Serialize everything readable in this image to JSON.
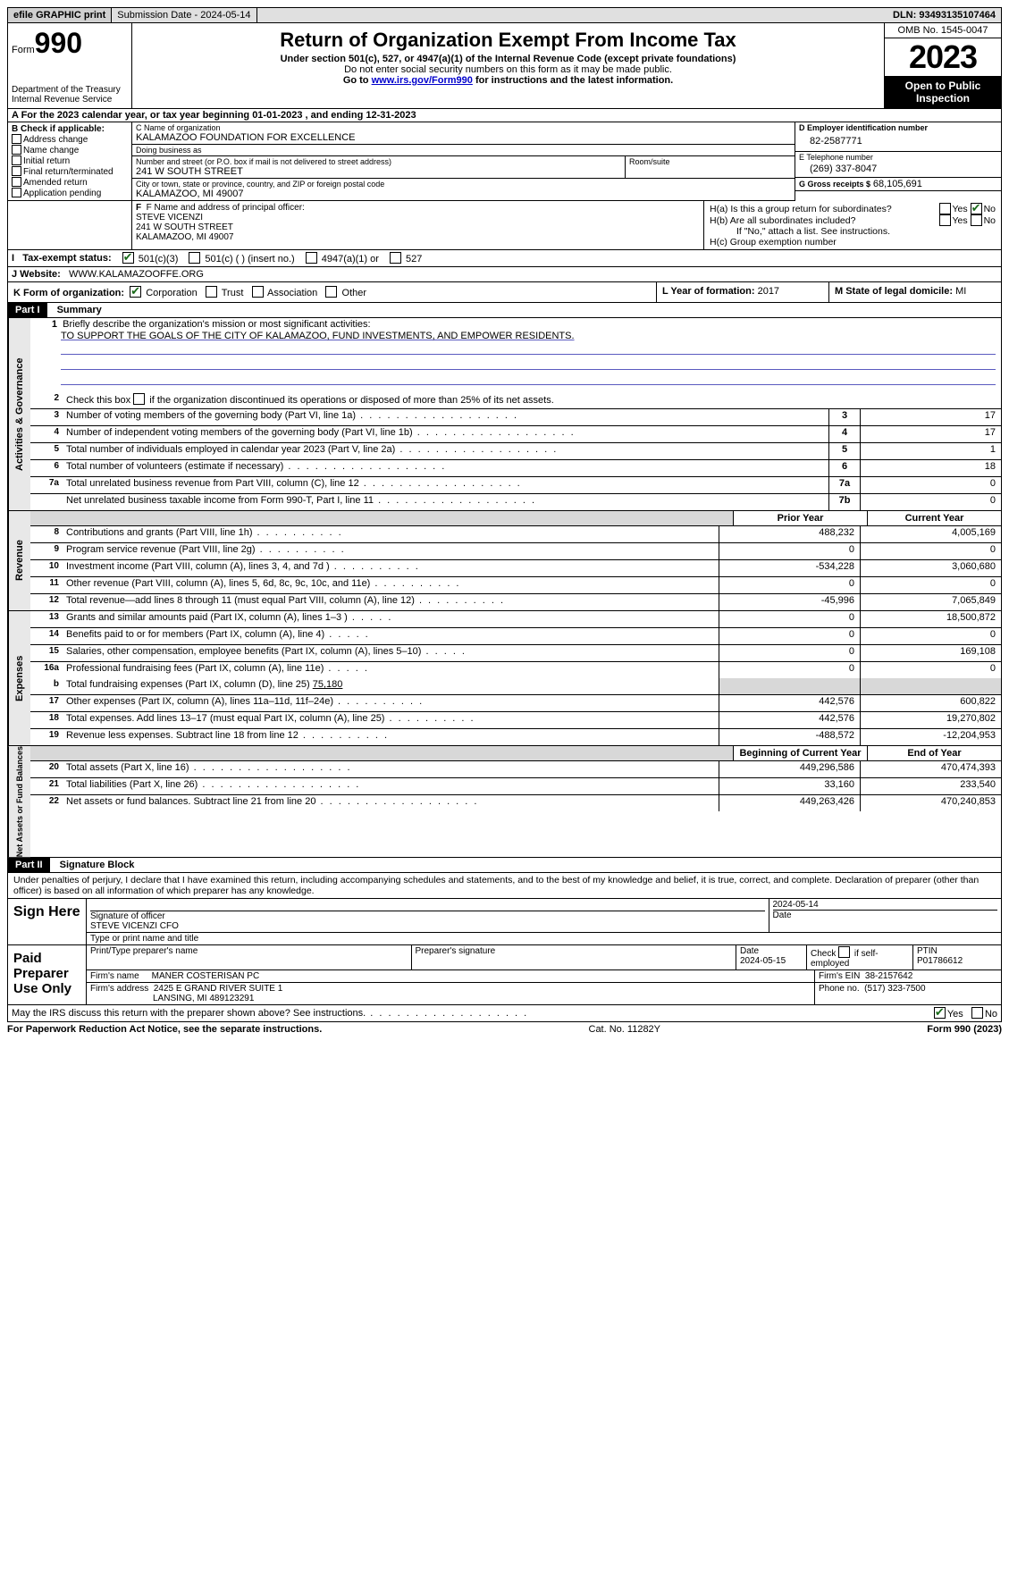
{
  "topbar": {
    "efile": "efile GRAPHIC print",
    "submission": "Submission Date - 2024-05-14",
    "dln": "DLN: 93493135107464"
  },
  "header": {
    "form_word": "Form",
    "form_num": "990",
    "dept": "Department of the Treasury\nInternal Revenue Service",
    "title": "Return of Organization Exempt From Income Tax",
    "subtitle": "Under section 501(c), 527, or 4947(a)(1) of the Internal Revenue Code (except private foundations)",
    "note1": "Do not enter social security numbers on this form as it may be made public.",
    "note2_pre": "Go to ",
    "note2_link": "www.irs.gov/Form990",
    "note2_post": " for instructions and the latest information.",
    "omb": "OMB No. 1545-0047",
    "year": "2023",
    "inspect": "Open to Public Inspection"
  },
  "rowA": "A For the 2023 calendar year, or tax year beginning 01-01-2023   , and ending 12-31-2023",
  "boxB": {
    "hdr": "B Check if applicable:",
    "opts": [
      "Address change",
      "Name change",
      "Initial return",
      "Final return/terminated",
      "Amended return",
      "Application pending"
    ]
  },
  "boxC": {
    "name_lab": "C Name of organization",
    "name": "KALAMAZOO FOUNDATION FOR EXCELLENCE",
    "dba_lab": "Doing business as",
    "dba": "",
    "street_lab": "Number and street (or P.O. box if mail is not delivered to street address)",
    "street": "241 W SOUTH STREET",
    "room_lab": "Room/suite",
    "city_lab": "City or town, state or province, country, and ZIP or foreign postal code",
    "city": "KALAMAZOO, MI  49007"
  },
  "boxD": {
    "lab": "D Employer identification number",
    "val": "82-2587771"
  },
  "boxE": {
    "lab": "E Telephone number",
    "val": "(269) 337-8047"
  },
  "boxG": {
    "lab": "G Gross receipts $",
    "val": "68,105,691"
  },
  "boxF": {
    "lab": "F  Name and address of principal officer:",
    "l1": "STEVE VICENZI",
    "l2": "241 W SOUTH STREET",
    "l3": "KALAMAZOO, MI  49007"
  },
  "boxH": {
    "a_lab": "H(a)  Is this a group return for subordinates?",
    "a_no": true,
    "b_lab": "H(b)  Are all subordinates included?",
    "b_note": "If \"No,\" attach a list. See instructions.",
    "c_lab": "H(c)  Group exemption number"
  },
  "boxI": {
    "lab": "I   Tax-exempt status:",
    "o1": "501(c)(3)",
    "o1_on": true,
    "o2": "501(c) (  ) (insert no.)",
    "o3": "4947(a)(1) or",
    "o4": "527"
  },
  "boxJ": {
    "lab": "J   Website:",
    "val": "WWW.KALAMAZOOFFE.ORG"
  },
  "boxK": {
    "lab": "K Form of organization:",
    "o1": "Corporation",
    "o1_on": true,
    "o2": "Trust",
    "o3": "Association",
    "o4": "Other"
  },
  "boxL": {
    "lab": "L Year of formation:",
    "val": "2017"
  },
  "boxM": {
    "lab": "M State of legal domicile:",
    "val": "MI"
  },
  "part1": {
    "tag": "Part I",
    "title": "Summary"
  },
  "mission": {
    "num": "1",
    "lab": "Briefly describe the organization's mission or most significant activities:",
    "text": "TO SUPPORT THE GOALS OF THE CITY OF KALAMAZOO, FUND INVESTMENTS, AND EMPOWER RESIDENTS."
  },
  "gov": {
    "label": "Activities & Governance",
    "l2": "Check this box          if the organization discontinued its operations or disposed of more than 25% of its net assets.",
    "rows": [
      {
        "n": "3",
        "d": "Number of voting members of the governing body (Part VI, line 1a)",
        "b": "3",
        "v": "17"
      },
      {
        "n": "4",
        "d": "Number of independent voting members of the governing body (Part VI, line 1b)",
        "b": "4",
        "v": "17"
      },
      {
        "n": "5",
        "d": "Total number of individuals employed in calendar year 2023 (Part V, line 2a)",
        "b": "5",
        "v": "1"
      },
      {
        "n": "6",
        "d": "Total number of volunteers (estimate if necessary)",
        "b": "6",
        "v": "18"
      },
      {
        "n": "7a",
        "d": "Total unrelated business revenue from Part VIII, column (C), line 12",
        "b": "7a",
        "v": "0"
      },
      {
        "n": "",
        "d": "Net unrelated business taxable income from Form 990-T, Part I, line 11",
        "b": "7b",
        "v": "0"
      }
    ]
  },
  "rev": {
    "label": "Revenue",
    "hdr_prior": "Prior Year",
    "hdr_curr": "Current Year",
    "rows": [
      {
        "n": "8",
        "d": "Contributions and grants (Part VIII, line 1h)",
        "p": "488,232",
        "c": "4,005,169"
      },
      {
        "n": "9",
        "d": "Program service revenue (Part VIII, line 2g)",
        "p": "0",
        "c": "0"
      },
      {
        "n": "10",
        "d": "Investment income (Part VIII, column (A), lines 3, 4, and 7d )",
        "p": "-534,228",
        "c": "3,060,680"
      },
      {
        "n": "11",
        "d": "Other revenue (Part VIII, column (A), lines 5, 6d, 8c, 9c, 10c, and 11e)",
        "p": "0",
        "c": "0"
      },
      {
        "n": "12",
        "d": "Total revenue—add lines 8 through 11 (must equal Part VIII, column (A), line 12)",
        "p": "-45,996",
        "c": "7,065,849"
      }
    ]
  },
  "exp": {
    "label": "Expenses",
    "rows": [
      {
        "n": "13",
        "d": "Grants and similar amounts paid (Part IX, column (A), lines 1–3 )",
        "p": "0",
        "c": "18,500,872"
      },
      {
        "n": "14",
        "d": "Benefits paid to or for members (Part IX, column (A), line 4)",
        "p": "0",
        "c": "0"
      },
      {
        "n": "15",
        "d": "Salaries, other compensation, employee benefits (Part IX, column (A), lines 5–10)",
        "p": "0",
        "c": "169,108"
      },
      {
        "n": "16a",
        "d": "Professional fundraising fees (Part IX, column (A), line 11e)",
        "p": "0",
        "c": "0"
      }
    ],
    "l16b_n": "b",
    "l16b": "Total fundraising expenses (Part IX, column (D), line 25)",
    "l16b_v": "75,180",
    "rows2": [
      {
        "n": "17",
        "d": "Other expenses (Part IX, column (A), lines 11a–11d, 11f–24e)",
        "p": "442,576",
        "c": "600,822"
      },
      {
        "n": "18",
        "d": "Total expenses. Add lines 13–17 (must equal Part IX, column (A), line 25)",
        "p": "442,576",
        "c": "19,270,802"
      },
      {
        "n": "19",
        "d": "Revenue less expenses. Subtract line 18 from line 12",
        "p": "-488,572",
        "c": "-12,204,953"
      }
    ]
  },
  "na": {
    "label": "Net Assets or Fund Balances",
    "hdr_beg": "Beginning of Current Year",
    "hdr_end": "End of Year",
    "rows": [
      {
        "n": "20",
        "d": "Total assets (Part X, line 16)",
        "p": "449,296,586",
        "c": "470,474,393"
      },
      {
        "n": "21",
        "d": "Total liabilities (Part X, line 26)",
        "p": "33,160",
        "c": "233,540"
      },
      {
        "n": "22",
        "d": "Net assets or fund balances. Subtract line 21 from line 20",
        "p": "449,263,426",
        "c": "470,240,853"
      }
    ]
  },
  "part2": {
    "tag": "Part II",
    "title": "Signature Block"
  },
  "sig": {
    "decl": "Under penalties of perjury, I declare that I have examined this return, including accompanying schedules and statements, and to the best of my knowledge and belief, it is true, correct, and complete. Declaration of preparer (other than officer) is based on all information of which preparer has any knowledge.",
    "sign_here": "Sign Here",
    "sig_officer_lab": "Signature of officer",
    "sig_officer": "STEVE VICENZI CFO",
    "sig_type_lab": "Type or print name and title",
    "date_lab": "Date",
    "date": "2024-05-14",
    "paid": "Paid Preparer Use Only",
    "prep_name_lab": "Print/Type preparer's name",
    "prep_sig_lab": "Preparer's signature",
    "prep_date_lab": "Date",
    "prep_date": "2024-05-15",
    "self_lab": "Check         if self-employed",
    "ptin_lab": "PTIN",
    "ptin": "P01786612",
    "firm_name_lab": "Firm's name",
    "firm_name": "MANER COSTERISAN PC",
    "firm_ein_lab": "Firm's EIN",
    "firm_ein": "38-2157642",
    "firm_addr_lab": "Firm's address",
    "firm_addr1": "2425 E GRAND RIVER SUITE 1",
    "firm_addr2": "LANSING, MI  489123291",
    "phone_lab": "Phone no.",
    "phone": "(517) 323-7500",
    "discuss": "May the IRS discuss this return with the preparer shown above? See instructions.",
    "discuss_yes": true
  },
  "footer": {
    "pra": "For Paperwork Reduction Act Notice, see the separate instructions.",
    "cat": "Cat. No. 11282Y",
    "form": "Form 990 (2023)"
  },
  "yesno": {
    "yes": "Yes",
    "no": "No"
  }
}
